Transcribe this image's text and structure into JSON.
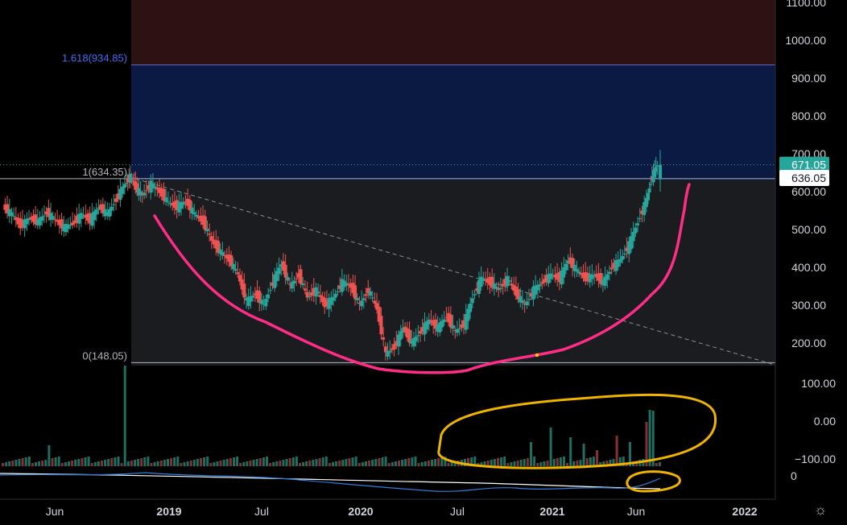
{
  "chart_data": {
    "type": "candlestick",
    "y_axis": {
      "ticks": [
        1100,
        1000,
        900,
        800,
        700,
        600,
        500,
        400,
        300,
        200
      ],
      "tick_labels": [
        "1100.00",
        "1000.00",
        "900.00",
        "800.00",
        "700.00",
        "600.00",
        "500.00",
        "400.00",
        "300.00",
        "200.00"
      ]
    },
    "volume_axis": {
      "tick_labels": [
        "100.00",
        "0.00",
        "−100.00"
      ]
    },
    "indicator_axis": {
      "tick_labels": [
        "0"
      ]
    },
    "x_axis": {
      "tick_labels": [
        "Jun",
        "2019",
        "Jul",
        "2020",
        "Jul",
        "2021",
        "Jun",
        "2022"
      ],
      "bold": [
        false,
        true,
        false,
        true,
        false,
        true,
        false,
        true
      ]
    },
    "fibonacci": [
      {
        "level": "1.618",
        "price": 934.85,
        "label": "1.618(934.85)",
        "color": "#4c6cf0"
      },
      {
        "level": "1",
        "price": 634.35,
        "label": "1(634.35)",
        "color": "#b2b5be"
      },
      {
        "level": "0",
        "price": 148.05,
        "label": "0(148.05)",
        "color": "#b2b5be"
      }
    ],
    "price_badges": [
      {
        "label": "671.05",
        "price": 671.05,
        "bg": "#26a69a",
        "fg": "#ffffff"
      },
      {
        "label": "636.05",
        "price": 636.05,
        "bg": "#ffffff",
        "fg": "#131722"
      }
    ],
    "price_series": [
      {
        "t": 0,
        "c": 560
      },
      {
        "t": 0.5,
        "c": 540
      },
      {
        "t": 1,
        "c": 510
      },
      {
        "t": 1.5,
        "c": 530
      },
      {
        "t": 2,
        "c": 520
      },
      {
        "t": 2.5,
        "c": 545
      },
      {
        "t": 3,
        "c": 525
      },
      {
        "t": 3.5,
        "c": 505
      },
      {
        "t": 4,
        "c": 515
      },
      {
        "t": 4.5,
        "c": 540
      },
      {
        "t": 5,
        "c": 525
      },
      {
        "t": 5.5,
        "c": 560
      },
      {
        "t": 6,
        "c": 540
      },
      {
        "t": 6.5,
        "c": 580
      },
      {
        "t": 7,
        "c": 620
      },
      {
        "t": 7.3,
        "c": 640
      },
      {
        "t": 7.6,
        "c": 610
      },
      {
        "t": 8,
        "c": 590
      },
      {
        "t": 8.5,
        "c": 620
      },
      {
        "t": 9,
        "c": 600
      },
      {
        "t": 9.5,
        "c": 570
      },
      {
        "t": 10,
        "c": 560
      },
      {
        "t": 10.5,
        "c": 575
      },
      {
        "t": 11,
        "c": 540
      },
      {
        "t": 11.5,
        "c": 520
      },
      {
        "t": 12,
        "c": 470
      },
      {
        "t": 12.5,
        "c": 440
      },
      {
        "t": 13,
        "c": 420
      },
      {
        "t": 13.5,
        "c": 380
      },
      {
        "t": 14,
        "c": 310
      },
      {
        "t": 14.5,
        "c": 330
      },
      {
        "t": 15,
        "c": 300
      },
      {
        "t": 15.5,
        "c": 360
      },
      {
        "t": 16,
        "c": 410
      },
      {
        "t": 16.5,
        "c": 350
      },
      {
        "t": 17,
        "c": 380
      },
      {
        "t": 17.5,
        "c": 320
      },
      {
        "t": 18,
        "c": 340
      },
      {
        "t": 18.5,
        "c": 300
      },
      {
        "t": 19,
        "c": 320
      },
      {
        "t": 19.5,
        "c": 360
      },
      {
        "t": 20,
        "c": 350
      },
      {
        "t": 20.5,
        "c": 300
      },
      {
        "t": 21,
        "c": 340
      },
      {
        "t": 21.5,
        "c": 290
      },
      {
        "t": 22,
        "c": 170
      },
      {
        "t": 22.5,
        "c": 190
      },
      {
        "t": 23,
        "c": 240
      },
      {
        "t": 23.5,
        "c": 200
      },
      {
        "t": 24,
        "c": 230
      },
      {
        "t": 24.5,
        "c": 260
      },
      {
        "t": 25,
        "c": 240
      },
      {
        "t": 25.5,
        "c": 270
      },
      {
        "t": 26,
        "c": 230
      },
      {
        "t": 26.5,
        "c": 250
      },
      {
        "t": 27,
        "c": 320
      },
      {
        "t": 27.5,
        "c": 370
      },
      {
        "t": 28,
        "c": 360
      },
      {
        "t": 28.5,
        "c": 340
      },
      {
        "t": 29,
        "c": 370
      },
      {
        "t": 29.5,
        "c": 330
      },
      {
        "t": 30,
        "c": 300
      },
      {
        "t": 30.5,
        "c": 340
      },
      {
        "t": 31,
        "c": 360
      },
      {
        "t": 31.5,
        "c": 380
      },
      {
        "t": 32,
        "c": 370
      },
      {
        "t": 32.5,
        "c": 420
      },
      {
        "t": 33,
        "c": 390
      },
      {
        "t": 33.5,
        "c": 370
      },
      {
        "t": 34,
        "c": 380
      },
      {
        "t": 34.5,
        "c": 360
      },
      {
        "t": 35,
        "c": 400
      },
      {
        "t": 35.5,
        "c": 420
      },
      {
        "t": 36,
        "c": 460
      },
      {
        "t": 36.5,
        "c": 520
      },
      {
        "t": 37,
        "c": 580
      },
      {
        "t": 37.3,
        "c": 640
      },
      {
        "t": 37.6,
        "c": 671.05
      }
    ]
  }
}
